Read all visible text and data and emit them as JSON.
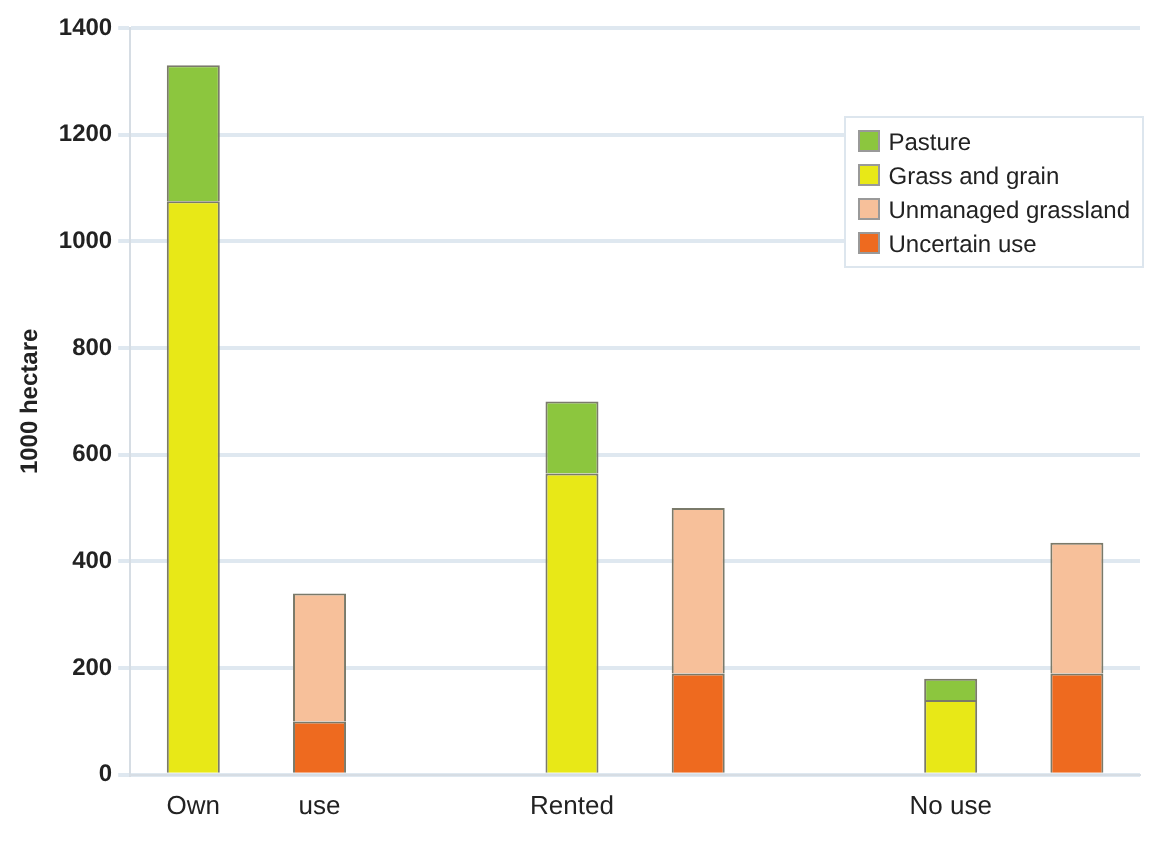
{
  "chart_data": {
    "type": "bar",
    "stacked": true,
    "ylabel": "1000 hectare",
    "categories": [
      "Own",
      "use",
      null,
      "Rented",
      null,
      null,
      "No use",
      null
    ],
    "series": [
      {
        "name": "Uncertain use",
        "color": "#ee6a1f",
        "values": [
          null,
          100,
          null,
          null,
          190,
          null,
          null,
          190
        ]
      },
      {
        "name": "Unmanaged grassland",
        "color": "#f7c09a",
        "values": [
          null,
          240,
          null,
          null,
          310,
          null,
          null,
          245
        ]
      },
      {
        "name": "Grass and grain",
        "color": "#e8e817",
        "values": [
          1075,
          null,
          null,
          565,
          null,
          null,
          140,
          null
        ]
      },
      {
        "name": "Pasture",
        "color": "#8cc63e",
        "values": [
          255,
          null,
          null,
          135,
          null,
          null,
          40,
          null
        ]
      }
    ],
    "ylim": [
      0,
      1400
    ],
    "yticks": [
      0,
      200,
      400,
      600,
      800,
      1000,
      1200,
      1400
    ],
    "grid": "y",
    "legend": "top right"
  }
}
